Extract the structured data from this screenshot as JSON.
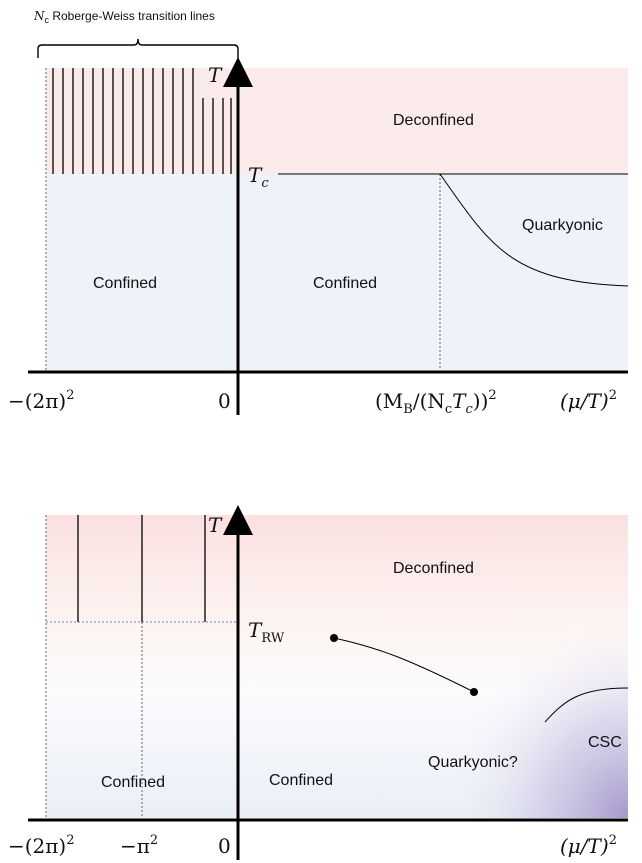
{
  "top": {
    "bracket_label_var": "N",
    "bracket_label_sub": "c",
    "bracket_label_text": " Roberge-Weiss transition lines",
    "t_axis": "T",
    "tc_var": "T",
    "tc_sub": "c",
    "region_deconfined": "Deconfined",
    "region_confined_left": "Confined",
    "region_confined_right": "Confined",
    "region_quarkyonic": "Quarkyonic",
    "x_tick_neg": "−(2π)",
    "x_tick_neg_exp": "2",
    "x_tick_zero": "0",
    "x_tick_mb": "(M",
    "x_tick_mb_sub": "B",
    "x_tick_mb_mid": "/(N",
    "x_tick_mb_sub2": "c",
    "x_tick_mb_mid2": "T",
    "x_tick_mb_sub3": "c",
    "x_tick_mb_end": "))",
    "x_tick_mb_exp": "2",
    "x_axis": "(μ/T)",
    "x_axis_exp": "2"
  },
  "bottom": {
    "t_axis": "T",
    "trw_var": "T",
    "trw_sub": "RW",
    "region_deconfined": "Deconfined",
    "region_confined_left": "Confined",
    "region_confined_right": "Confined",
    "region_quarkyonic": "Quarkyonic?",
    "region_csc": "CSC",
    "x_tick_neg": "−(2π)",
    "x_tick_neg_exp": "2",
    "x_tick_mid": "−π",
    "x_tick_mid_exp": "2",
    "x_tick_zero": "0",
    "x_axis": "(μ/T)",
    "x_axis_exp": "2"
  },
  "colors": {
    "deconfined": "#fcebeb",
    "confined": "#eef3fa",
    "csc": "#9d8bc4",
    "axis": "#000000"
  }
}
